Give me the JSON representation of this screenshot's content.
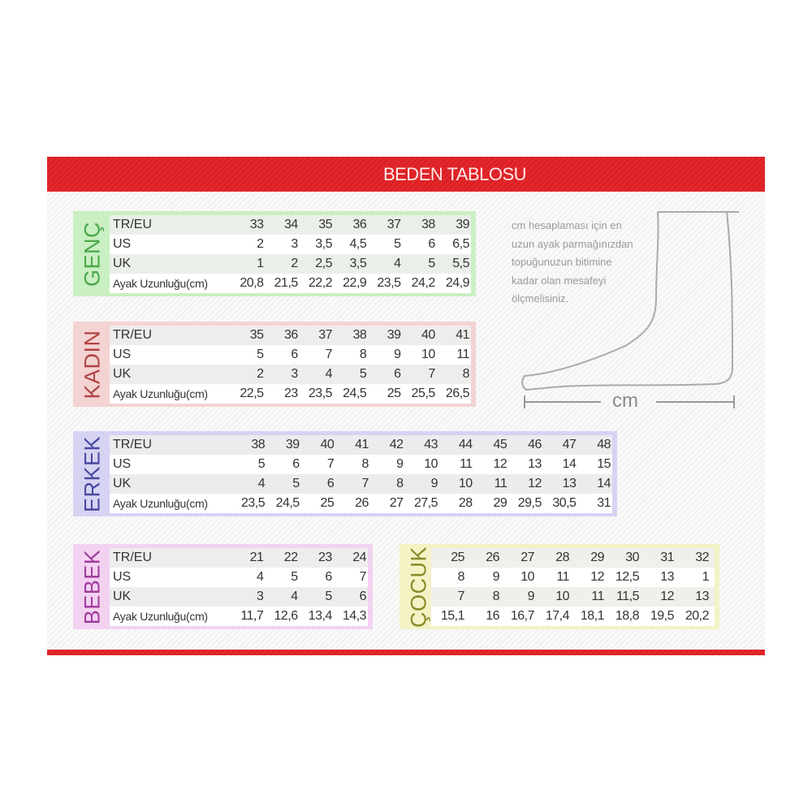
{
  "header": {
    "title": "BEDEN TABLOSU"
  },
  "colors": {
    "band": "#e3282c",
    "genc": "#c9efc2",
    "kadin": "#f4d3d3",
    "erkek": "#d6d3f3",
    "bebek": "#f3d2f1",
    "cocuk": "#f3f3c6"
  },
  "note": {
    "lines": [
      "cm hesaplaması için en",
      "uzun ayak parmağınızdan",
      "topuğunuzun bitimine",
      "kadar olan mesafeyi",
      "ölçmelisiniz."
    ],
    "unit": "cm"
  },
  "tables": [
    {
      "key": "genc",
      "label": "GENÇ",
      "rows": [
        {
          "label": "TR/EU",
          "values": [
            "33",
            "34",
            "35",
            "36",
            "37",
            "38",
            "39"
          ]
        },
        {
          "label": "US",
          "values": [
            "2",
            "3",
            "3,5",
            "4,5",
            "5",
            "6",
            "6,5"
          ]
        },
        {
          "label": "UK",
          "values": [
            "1",
            "2",
            "2,5",
            "3,5",
            "4",
            "5",
            "5,5"
          ]
        },
        {
          "label": "Ayak Uzunluğu(cm)",
          "values": [
            "20,8",
            "21,5",
            "22,2",
            "22,9",
            "23,5",
            "24,2",
            "24,9"
          ]
        }
      ]
    },
    {
      "key": "kadin",
      "label": "KADIN",
      "rows": [
        {
          "label": "TR/EU",
          "values": [
            "35",
            "36",
            "37",
            "38",
            "39",
            "40",
            "41"
          ]
        },
        {
          "label": "US",
          "values": [
            "5",
            "6",
            "7",
            "8",
            "9",
            "10",
            "11"
          ]
        },
        {
          "label": "UK",
          "values": [
            "2",
            "3",
            "4",
            "5",
            "6",
            "7",
            "8"
          ]
        },
        {
          "label": "Ayak Uzunluğu(cm)",
          "values": [
            "22,5",
            "23",
            "23,5",
            "24,5",
            "25",
            "25,5",
            "26,5"
          ]
        }
      ]
    },
    {
      "key": "erkek",
      "label": "ERKEK",
      "rows": [
        {
          "label": "TR/EU",
          "values": [
            "38",
            "39",
            "40",
            "41",
            "42",
            "43",
            "44",
            "45",
            "46",
            "47",
            "48"
          ]
        },
        {
          "label": "US",
          "values": [
            "5",
            "6",
            "7",
            "8",
            "9",
            "10",
            "11",
            "12",
            "13",
            "14",
            "15"
          ]
        },
        {
          "label": "UK",
          "values": [
            "4",
            "5",
            "6",
            "7",
            "8",
            "9",
            "10",
            "11",
            "12",
            "13",
            "14"
          ]
        },
        {
          "label": "Ayak Uzunluğu(cm)",
          "values": [
            "23,5",
            "24,5",
            "25",
            "26",
            "27",
            "27,5",
            "28",
            "29",
            "29,5",
            "30,5",
            "31"
          ]
        }
      ]
    },
    {
      "key": "bebek",
      "label": "BEBEK",
      "rows": [
        {
          "label": "TR/EU",
          "values": [
            "21",
            "22",
            "23",
            "24"
          ]
        },
        {
          "label": "US",
          "values": [
            "4",
            "5",
            "6",
            "7"
          ]
        },
        {
          "label": "UK",
          "values": [
            "3",
            "4",
            "5",
            "6"
          ]
        },
        {
          "label": "Ayak Uzunluğu(cm)",
          "values": [
            "11,7",
            "12,6",
            "13,4",
            "14,3"
          ]
        }
      ]
    },
    {
      "key": "cocuk",
      "label": "ÇOCUK",
      "rows": [
        {
          "values": [
            "25",
            "26",
            "27",
            "28",
            "29",
            "30",
            "31",
            "32"
          ]
        },
        {
          "values": [
            "8",
            "9",
            "10",
            "11",
            "12",
            "12,5",
            "13",
            "1"
          ]
        },
        {
          "values": [
            "7",
            "8",
            "9",
            "10",
            "11",
            "11,5",
            "12",
            "13"
          ]
        },
        {
          "values": [
            "15,1",
            "16",
            "16,7",
            "17,4",
            "18,1",
            "18,8",
            "19,5",
            "20,2"
          ]
        }
      ]
    }
  ]
}
